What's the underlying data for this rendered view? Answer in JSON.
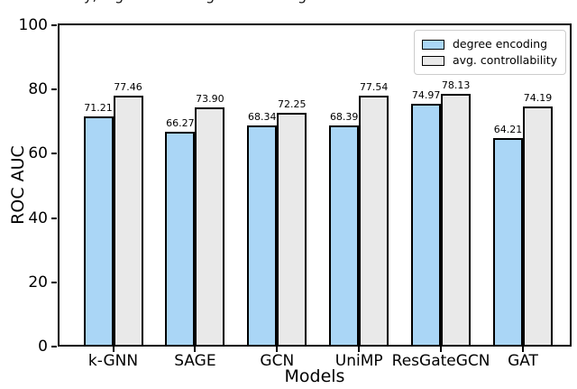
{
  "figure": {
    "cropped_caption_fragments": [
      "y,",
      "g",
      "g",
      "g"
    ]
  },
  "legend": {
    "items": [
      {
        "label": "degree encoding",
        "color": "#aad6f6"
      },
      {
        "label": "avg. controllability",
        "color": "#e9e9e9"
      }
    ]
  },
  "chart_data": {
    "type": "bar",
    "title": "",
    "categories": [
      "k-GNN",
      "SAGE",
      "GCN",
      "UniMP",
      "ResGateGCN",
      "GAT"
    ],
    "series": [
      {
        "name": "degree encoding",
        "color": "#aad6f6",
        "values": [
          71.21,
          66.27,
          68.34,
          68.39,
          74.97,
          64.21
        ]
      },
      {
        "name": "avg. controllability",
        "color": "#e9e9e9",
        "values": [
          77.46,
          73.9,
          72.25,
          77.54,
          78.13,
          74.19
        ]
      }
    ],
    "value_labels": [
      "71.21",
      "77.46",
      "66.27",
      "73.90",
      "68.34",
      "72.25",
      "68.39",
      "77.54",
      "74.97",
      "78.13",
      "64.21",
      "74.19"
    ],
    "xlabel": "Models",
    "ylabel": "ROC AUC",
    "ylim": [
      0,
      100
    ],
    "yticks": [
      0,
      20,
      40,
      60,
      80,
      100
    ],
    "bar_edge_color": "#000000",
    "grid": false,
    "legend_position": "upper right"
  }
}
